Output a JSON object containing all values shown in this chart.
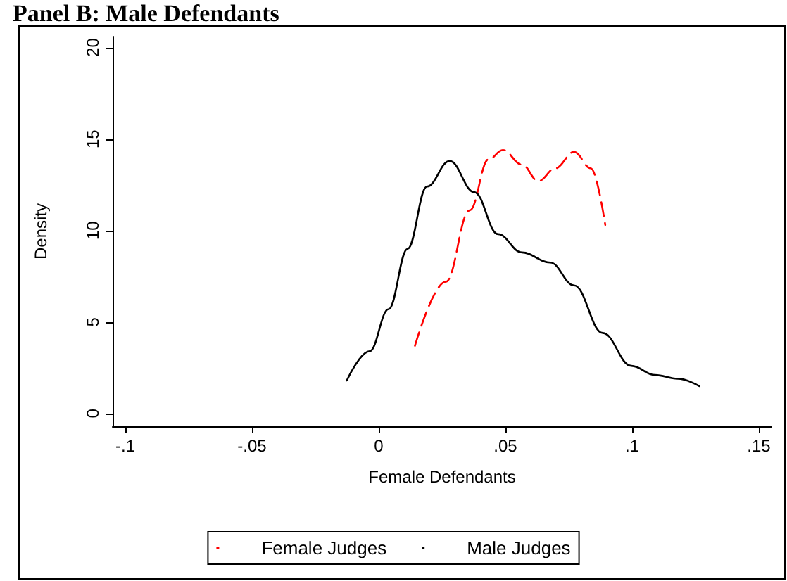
{
  "chart_data": {
    "type": "line",
    "title": "Panel B: Male Defendants",
    "xlabel": "Female Defendants",
    "ylabel": "Density",
    "xlim": [
      -0.105,
      0.155
    ],
    "ylim": [
      -0.7,
      20.6
    ],
    "xticks": [
      {
        "value": -0.1,
        "label": "-.1"
      },
      {
        "value": -0.05,
        "label": "-.05"
      },
      0,
      {
        "value": 0.05,
        "label": ".05"
      },
      {
        "value": 0.1,
        "label": ".1"
      },
      {
        "value": 0.15,
        "label": ".15"
      }
    ],
    "yticks": [
      0,
      5,
      10,
      15,
      20
    ],
    "grid": false,
    "legend": "bottom",
    "marker": "none",
    "series": [
      {
        "name": "Female Judges",
        "color": "#ff0000",
        "line_style": "dashed",
        "x": [
          0.0143,
          0.0265,
          0.0359,
          0.0434,
          0.049,
          0.0565,
          0.063,
          0.0697,
          0.0771,
          0.0837,
          0.0894
        ],
        "values": [
          3.7,
          7.2,
          11.1,
          13.9,
          14.4,
          13.6,
          12.7,
          13.4,
          14.3,
          13.4,
          10.3
        ]
      },
      {
        "name": "Male Judges",
        "color": "#000000",
        "line_style": "solid",
        "x": [
          -0.0126,
          -0.0036,
          0.0039,
          0.0114,
          0.019,
          0.028,
          0.0377,
          0.0471,
          0.0565,
          0.0677,
          0.0771,
          0.0884,
          0.0997,
          0.109,
          0.118,
          0.1265
        ],
        "values": [
          1.8,
          3.4,
          5.7,
          9.0,
          12.4,
          13.8,
          12.1,
          9.8,
          8.8,
          8.25,
          7.0,
          4.4,
          2.6,
          2.1,
          1.9,
          1.5
        ]
      }
    ]
  }
}
